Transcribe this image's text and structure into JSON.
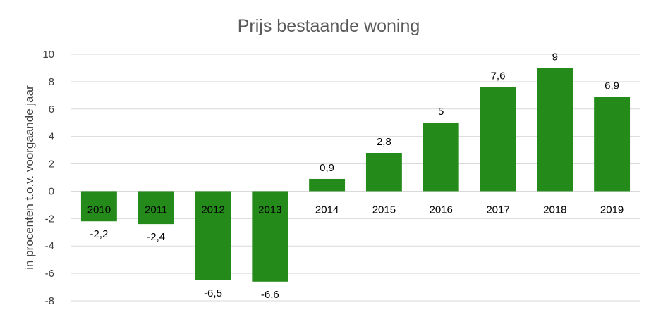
{
  "chart_data": {
    "type": "bar",
    "title": "Prijs bestaande woning",
    "ylabel": "in procenten t.o.v. voorgaande jaar",
    "xlabel": "",
    "categories": [
      "2010",
      "2011",
      "2012",
      "2013",
      "2014",
      "2015",
      "2016",
      "2017",
      "2018",
      "2019"
    ],
    "values": [
      -2.2,
      -2.4,
      -6.5,
      -6.6,
      0.9,
      2.8,
      5,
      7.6,
      9,
      6.9
    ],
    "value_labels": [
      "-2,2",
      "-2,4",
      "-6,5",
      "-6,6",
      "0,9",
      "2,8",
      "5",
      "7,6",
      "9",
      "6,9"
    ],
    "ylim": [
      -8,
      10
    ],
    "yticks": [
      10,
      8,
      6,
      4,
      2,
      0,
      -2,
      -4,
      -6,
      -8
    ],
    "ytick_labels": [
      "10",
      "8",
      "6",
      "4",
      "2",
      "0",
      "-2",
      "-4",
      "-6",
      "-8"
    ],
    "grid": true,
    "legend": "none",
    "bar_color": "#248a1a"
  }
}
